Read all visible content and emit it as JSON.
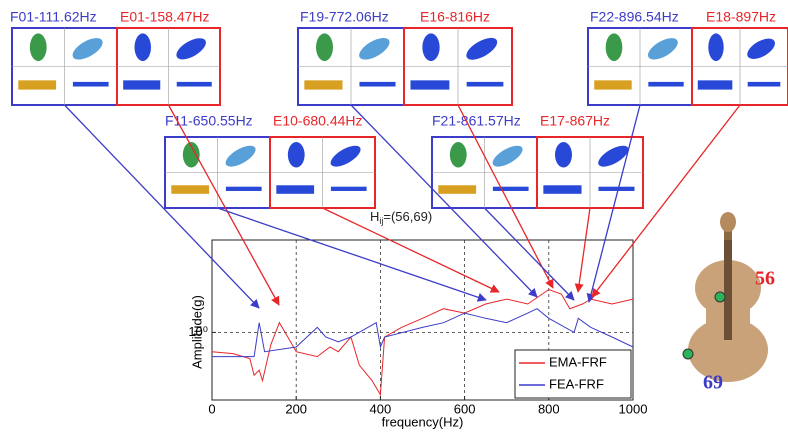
{
  "chart_data": {
    "type": "line",
    "title": {
      "symbol": "H",
      "subscript": "ij",
      "rest": "=(56,69)"
    },
    "xlabel": "frequency(Hz)",
    "ylabel": "Amplitude(g)",
    "xlim": [
      0,
      1000
    ],
    "xticks": [
      0,
      200,
      400,
      600,
      800,
      1000
    ],
    "ylim": [
      0.4,
      3.5
    ],
    "yticks": [
      {
        "value": 1,
        "label": "10⁰"
      }
    ],
    "yscale": "log",
    "grid": true,
    "legend": "lower right",
    "series": [
      {
        "name": "EMA-FRF",
        "color": "#e8262a",
        "x": [
          0,
          50,
          90,
          100,
          112,
          120,
          140,
          160,
          180,
          200,
          250,
          280,
          300,
          330,
          350,
          380,
          400,
          410,
          450,
          500,
          550,
          600,
          650,
          700,
          750,
          800,
          830,
          850,
          880,
          900,
          950,
          1000
        ],
        "values": [
          0.77,
          0.75,
          0.7,
          0.56,
          0.6,
          0.52,
          0.85,
          1.14,
          0.94,
          0.77,
          0.72,
          0.82,
          0.77,
          0.94,
          0.64,
          0.52,
          0.43,
          0.94,
          1.07,
          1.21,
          1.38,
          1.3,
          1.47,
          1.57,
          1.47,
          1.79,
          1.68,
          1.38,
          1.47,
          1.57,
          1.47,
          1.57
        ]
      },
      {
        "name": "FEA-FRF",
        "color": "#3c3cc8",
        "x": [
          0,
          50,
          100,
          112,
          125,
          200,
          250,
          270,
          300,
          330,
          390,
          400,
          410,
          500,
          550,
          600,
          650,
          700,
          750,
          772,
          800,
          860,
          870,
          900,
          950,
          1000
        ],
        "values": [
          0.72,
          0.72,
          0.72,
          1.14,
          0.77,
          0.82,
          1.07,
          0.94,
          0.88,
          0.94,
          1.14,
          0.82,
          0.94,
          1.07,
          1.14,
          1.3,
          1.21,
          1.14,
          1.3,
          1.38,
          1.21,
          1.0,
          1.21,
          1.07,
          0.94,
          0.82
        ]
      }
    ],
    "annotations": [
      {
        "text": "F01-111.62Hz",
        "color": "#3c3cc8"
      },
      {
        "text": "E01-158.47Hz",
        "color": "#e8262a"
      },
      {
        "text": "F19-772.06Hz",
        "color": "#3c3cc8"
      },
      {
        "text": "E16-816Hz",
        "color": "#e8262a"
      },
      {
        "text": "F22-896.54Hz",
        "color": "#3c3cc8"
      },
      {
        "text": "E18-897Hz",
        "color": "#e8262a"
      },
      {
        "text": "F11-650.55Hz",
        "color": "#3c3cc8"
      },
      {
        "text": "E10-680.44Hz",
        "color": "#e8262a"
      },
      {
        "text": "F21-861.57Hz",
        "color": "#3c3cc8"
      },
      {
        "text": "E17-867Hz",
        "color": "#e8262a"
      }
    ],
    "violin_labels": [
      {
        "text": "56",
        "color": "#e8262a"
      },
      {
        "text": "69",
        "color": "#3c3cc8"
      }
    ]
  }
}
